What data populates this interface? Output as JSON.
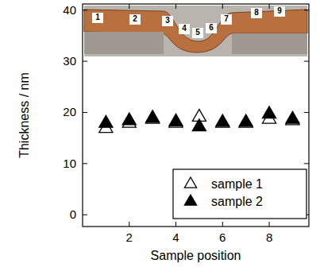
{
  "chart_data": {
    "type": "scatter",
    "x_label": "Sample position",
    "y_label": "Thickness / nm",
    "annotations": [
      "1",
      "2",
      "3",
      "4",
      "5",
      "6",
      "7",
      "8",
      "9"
    ],
    "xlim": [
      0,
      9.7
    ],
    "ylim": [
      -2.3,
      41.2
    ],
    "xticks": [
      2,
      4,
      6,
      8
    ],
    "yticks": [
      0,
      10,
      20,
      30,
      40
    ],
    "legend": "lower right",
    "series": [
      {
        "name": "sample 1",
        "color": "#000000",
        "marker": "open_triangle",
        "x": [
          1,
          2,
          3,
          4,
          5,
          6,
          7,
          8,
          9
        ],
        "values": [
          17.0,
          18.0,
          18.8,
          18.0,
          19.2,
          18.0,
          18.0,
          18.8,
          18.5
        ]
      },
      {
        "name": "sample 2",
        "color": "#000000",
        "marker": "triangle",
        "x": [
          1,
          2,
          3,
          4,
          5,
          6,
          7,
          8,
          9
        ],
        "values": [
          18.0,
          18.5,
          19.0,
          18.3,
          17.3,
          18.2,
          18.2,
          19.8,
          18.8
        ]
      }
    ]
  }
}
